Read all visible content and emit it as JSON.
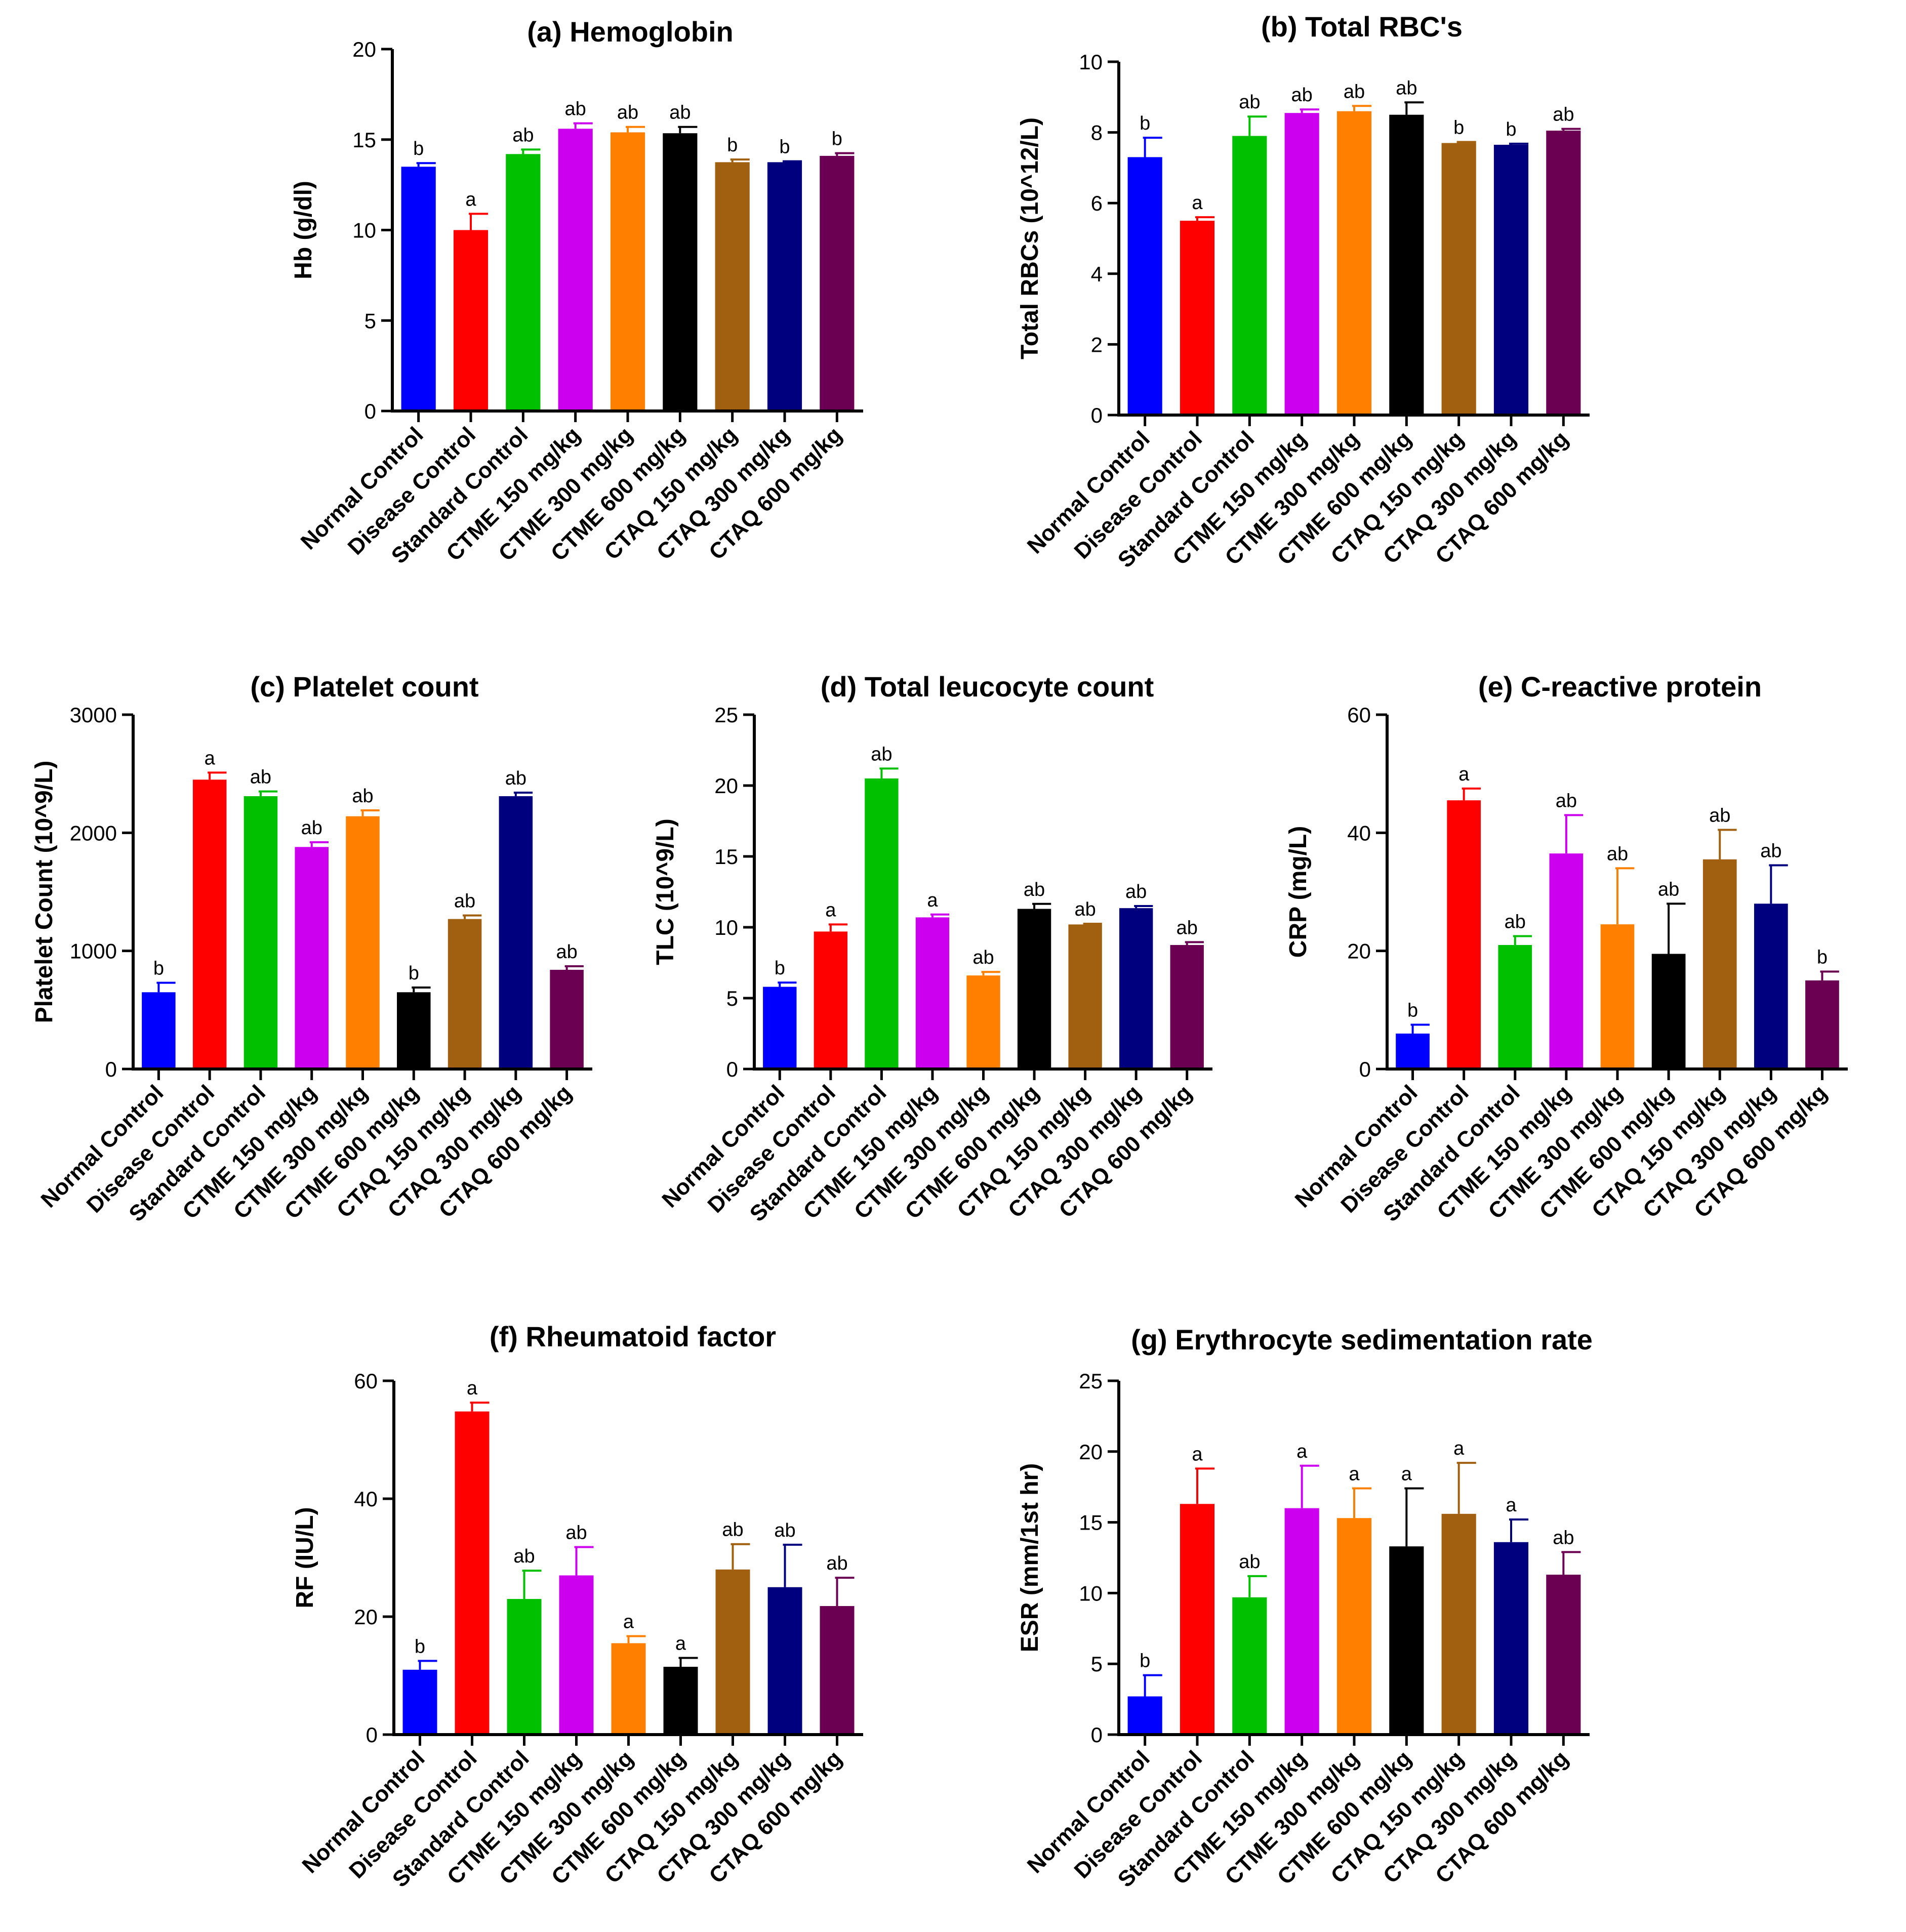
{
  "categories": [
    "Normal Control",
    "Disease Control",
    "Standard Control",
    "CTME 150 mg/kg",
    "CTME 300 mg/kg",
    "CTME 600 mg/kg",
    "CTAQ 150 mg/kg",
    "CTAQ 300 mg/kg",
    "CTAQ 600 mg/kg"
  ],
  "colors": [
    "#0000ff",
    "#ff0000",
    "#00c000",
    "#cc00ee",
    "#ff8000",
    "#000000",
    "#a0600f",
    "#00007f",
    "#6b0052"
  ],
  "chart_data": [
    {
      "id": "a",
      "type": "bar",
      "title": "(a) Hemoglobin",
      "ylabel": "Hb (g/dl)",
      "ylim": [
        0,
        20
      ],
      "yticks": [
        "0",
        "5",
        "10",
        "15",
        "20"
      ],
      "values": [
        13.5,
        10.0,
        14.2,
        15.6,
        15.4,
        15.35,
        13.75,
        13.75,
        14.1
      ],
      "errors": [
        0.2,
        0.9,
        0.25,
        0.3,
        0.3,
        0.35,
        0.15,
        0.05,
        0.15
      ],
      "significance": [
        "b",
        "a",
        "ab",
        "ab",
        "ab",
        "ab",
        "b",
        "b",
        "b"
      ]
    },
    {
      "id": "b",
      "type": "bar",
      "title": "(b) Total RBC's",
      "ylabel": "Total RBCs (10^12/L)",
      "ylim": [
        0,
        10
      ],
      "yticks": [
        "0",
        "2",
        "4",
        "6",
        "8",
        "10"
      ],
      "values": [
        7.3,
        5.5,
        7.9,
        8.55,
        8.6,
        8.5,
        7.7,
        7.65,
        8.05
      ],
      "errors": [
        0.55,
        0.1,
        0.55,
        0.1,
        0.15,
        0.35,
        0.03,
        0.03,
        0.05
      ],
      "significance": [
        "b",
        "a",
        "ab",
        "ab",
        "ab",
        "ab",
        "b",
        "b",
        "ab"
      ]
    },
    {
      "id": "c",
      "type": "bar",
      "title": "(c) Platelet count",
      "ylabel": "Platelet Count (10^9/L)",
      "ylim": [
        0,
        3000
      ],
      "yticks": [
        "0",
        "1000",
        "2000",
        "3000"
      ],
      "values": [
        650,
        2450,
        2310,
        1880,
        2140,
        650,
        1270,
        2310,
        840
      ],
      "errors": [
        80,
        60,
        40,
        40,
        50,
        40,
        30,
        30,
        30
      ],
      "significance": [
        "b",
        "a",
        "ab",
        "ab",
        "ab",
        "b",
        "ab",
        "ab",
        "ab"
      ]
    },
    {
      "id": "d",
      "type": "bar",
      "title": "(d) Total leucocyte count",
      "ylabel": "TLC (10^9/L)",
      "ylim": [
        0,
        25
      ],
      "yticks": [
        "0",
        "5",
        "10",
        "15",
        "20",
        "25"
      ],
      "values": [
        5.8,
        9.7,
        20.5,
        10.7,
        6.6,
        11.3,
        10.2,
        11.35,
        8.75
      ],
      "errors": [
        0.3,
        0.5,
        0.7,
        0.2,
        0.25,
        0.35,
        0.05,
        0.15,
        0.2
      ],
      "significance": [
        "b",
        "a",
        "ab",
        "a",
        "ab",
        "ab",
        "ab",
        "ab",
        "ab"
      ]
    },
    {
      "id": "e",
      "type": "bar",
      "title": "(e) C-reactive protein",
      "ylabel": "CRP (mg/L)",
      "ylim": [
        0,
        60
      ],
      "yticks": [
        "0",
        "20",
        "40",
        "60"
      ],
      "values": [
        6,
        45.5,
        21,
        36.5,
        24.5,
        19.5,
        35.5,
        28,
        15
      ],
      "errors": [
        1.5,
        2,
        1.5,
        6.5,
        9.5,
        8.5,
        5,
        6.5,
        1.5
      ],
      "significance": [
        "b",
        "a",
        "ab",
        "ab",
        "ab",
        "ab",
        "ab",
        "ab",
        "b"
      ]
    },
    {
      "id": "f",
      "type": "bar",
      "title": "(f) Rheumatoid factor",
      "ylabel": "RF (IU/L)",
      "ylim": [
        0,
        60
      ],
      "yticks": [
        "0",
        "20",
        "40",
        "60"
      ],
      "values": [
        11,
        54.8,
        23,
        27,
        15.5,
        11.5,
        28,
        25,
        21.8
      ],
      "errors": [
        1.5,
        1.5,
        4.8,
        4.8,
        1.2,
        1.5,
        4.3,
        7.2,
        4.8
      ],
      "significance": [
        "b",
        "a",
        "ab",
        "ab",
        "a",
        "a",
        "ab",
        "ab",
        "ab"
      ]
    },
    {
      "id": "g",
      "type": "bar",
      "title": "(g) Erythrocyte sedimentation rate",
      "ylabel": "ESR (mm/1st hr)",
      "ylim": [
        0,
        25
      ],
      "yticks": [
        "0",
        "5",
        "10",
        "15",
        "20",
        "25"
      ],
      "values": [
        2.7,
        16.3,
        9.7,
        16.0,
        15.3,
        13.3,
        15.6,
        13.6,
        11.3
      ],
      "errors": [
        1.5,
        2.5,
        1.5,
        3.0,
        2.1,
        4.1,
        3.6,
        1.6,
        1.6
      ],
      "significance": [
        "b",
        "a",
        "ab",
        "a",
        "a",
        "a",
        "a",
        "a",
        "ab"
      ]
    }
  ]
}
